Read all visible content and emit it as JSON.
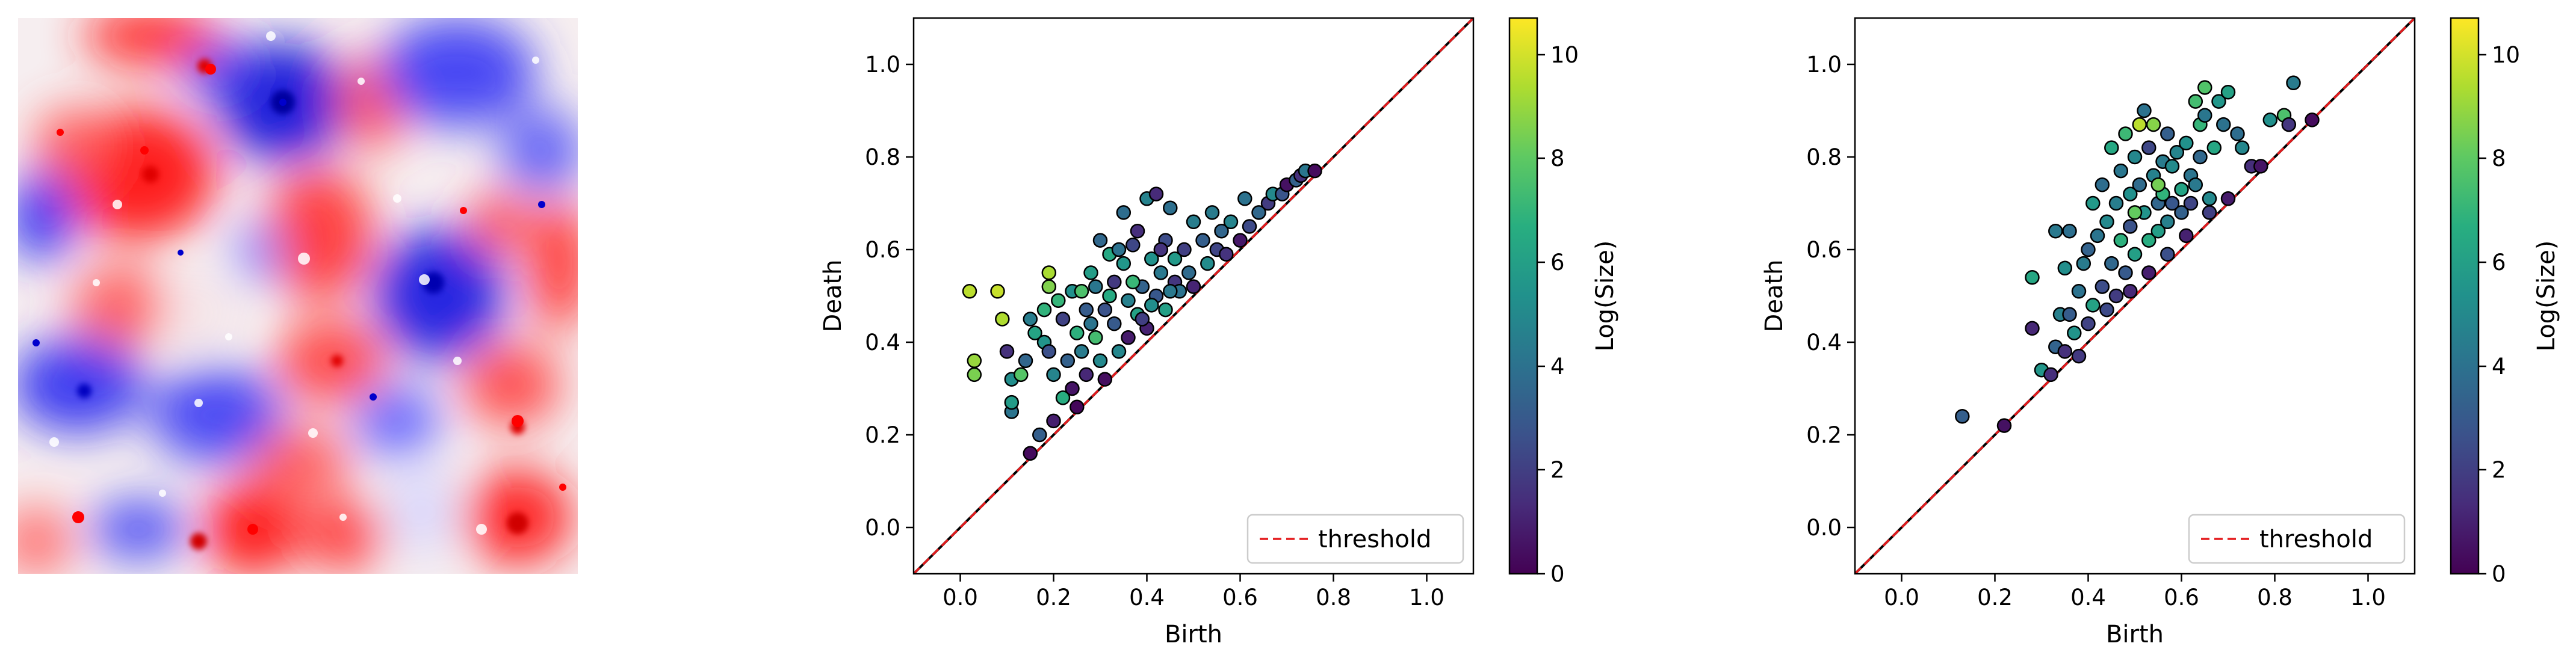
{
  "colors": {
    "threshold": "#e41a1c",
    "diagonal": "#000000",
    "point_edge": "#000000",
    "field_positive": "#ff0000",
    "field_negative": "#0000ff",
    "field_zero": "#ffffff",
    "colormap": [
      "#440154",
      "#472c7a",
      "#3b528b",
      "#2c728e",
      "#21918c",
      "#28ae80",
      "#5ec962",
      "#addc30",
      "#fde725"
    ]
  },
  "image_panel": {
    "content": "scalar field heatmap (red positive, blue negative)",
    "colormap": "bwr"
  },
  "chart_data": [
    {
      "type": "scatter",
      "title": "",
      "xlabel": "Birth",
      "ylabel": "Death",
      "xlim": [
        -0.1,
        1.1
      ],
      "ylim": [
        -0.1,
        1.1
      ],
      "xticks": [
        "0.0",
        "0.2",
        "0.4",
        "0.6",
        "0.8",
        "1.0"
      ],
      "yticks": [
        "0.0",
        "0.2",
        "0.4",
        "0.6",
        "0.8",
        "1.0"
      ],
      "grid": false,
      "legend": {
        "position": "lower-right",
        "entries": [
          "threshold"
        ]
      },
      "threshold": {
        "label": "threshold",
        "style": "dashed",
        "line": "y = x"
      },
      "colorbar": {
        "label": "Log(Size)",
        "min": 0,
        "max": 10.7,
        "ticks": [
          "0",
          "2",
          "4",
          "6",
          "8",
          "10"
        ]
      },
      "points": [
        [
          0.02,
          0.51,
          9.6
        ],
        [
          0.08,
          0.51,
          9.8
        ],
        [
          0.03,
          0.36,
          9.0
        ],
        [
          0.03,
          0.33,
          8.5
        ],
        [
          0.09,
          0.45,
          9.4
        ],
        [
          0.1,
          0.38,
          1.5
        ],
        [
          0.11,
          0.32,
          5.2
        ],
        [
          0.11,
          0.25,
          4.1
        ],
        [
          0.11,
          0.27,
          5.8
        ],
        [
          0.13,
          0.33,
          7.8
        ],
        [
          0.14,
          0.36,
          3.5
        ],
        [
          0.15,
          0.45,
          4.5
        ],
        [
          0.15,
          0.16,
          0.3
        ],
        [
          0.16,
          0.42,
          6.2
        ],
        [
          0.17,
          0.2,
          3.2
        ],
        [
          0.18,
          0.47,
          6.9
        ],
        [
          0.18,
          0.4,
          5.5
        ],
        [
          0.19,
          0.52,
          8.6
        ],
        [
          0.19,
          0.55,
          9.3
        ],
        [
          0.19,
          0.38,
          2.6
        ],
        [
          0.2,
          0.33,
          4.8
        ],
        [
          0.2,
          0.23,
          0.9
        ],
        [
          0.21,
          0.49,
          7.0
        ],
        [
          0.22,
          0.45,
          2.1
        ],
        [
          0.22,
          0.28,
          6.6
        ],
        [
          0.23,
          0.36,
          3.3
        ],
        [
          0.24,
          0.51,
          5.3
        ],
        [
          0.24,
          0.3,
          0.6
        ],
        [
          0.25,
          0.42,
          6.8
        ],
        [
          0.25,
          0.26,
          0.2
        ],
        [
          0.26,
          0.38,
          4.4
        ],
        [
          0.27,
          0.47,
          3.1
        ],
        [
          0.27,
          0.33,
          1.2
        ],
        [
          0.28,
          0.55,
          5.9
        ],
        [
          0.29,
          0.52,
          4.2
        ],
        [
          0.29,
          0.41,
          7.4
        ],
        [
          0.3,
          0.62,
          3.6
        ],
        [
          0.3,
          0.36,
          5.0
        ],
        [
          0.31,
          0.47,
          2.7
        ],
        [
          0.31,
          0.32,
          0.4
        ],
        [
          0.32,
          0.59,
          6.4
        ],
        [
          0.33,
          0.44,
          3.0
        ],
        [
          0.33,
          0.53,
          1.8
        ],
        [
          0.34,
          0.38,
          4.9
        ],
        [
          0.35,
          0.57,
          5.6
        ],
        [
          0.35,
          0.68,
          3.8
        ],
        [
          0.36,
          0.49,
          4.6
        ],
        [
          0.36,
          0.41,
          0.8
        ],
        [
          0.37,
          0.61,
          2.3
        ],
        [
          0.38,
          0.46,
          6.1
        ],
        [
          0.38,
          0.64,
          1.4
        ],
        [
          0.39,
          0.52,
          3.4
        ],
        [
          0.4,
          0.71,
          4.7
        ],
        [
          0.4,
          0.43,
          1.0
        ],
        [
          0.41,
          0.58,
          5.4
        ],
        [
          0.42,
          0.5,
          2.9
        ],
        [
          0.42,
          0.72,
          1.3
        ],
        [
          0.43,
          0.55,
          4.3
        ],
        [
          0.44,
          0.47,
          6.0
        ],
        [
          0.44,
          0.62,
          2.5
        ],
        [
          0.45,
          0.69,
          3.9
        ],
        [
          0.46,
          0.53,
          1.7
        ],
        [
          0.46,
          0.58,
          5.7
        ],
        [
          0.47,
          0.51,
          4.0
        ],
        [
          0.48,
          0.6,
          2.0
        ],
        [
          0.49,
          0.55,
          3.7
        ],
        [
          0.5,
          0.66,
          4.5
        ],
        [
          0.5,
          0.52,
          1.1
        ],
        [
          0.52,
          0.62,
          3.2
        ],
        [
          0.53,
          0.57,
          5.1
        ],
        [
          0.54,
          0.68,
          4.4
        ],
        [
          0.55,
          0.6,
          2.2
        ],
        [
          0.56,
          0.64,
          3.5
        ],
        [
          0.57,
          0.59,
          1.6
        ],
        [
          0.58,
          0.66,
          4.8
        ],
        [
          0.6,
          0.62,
          0.7
        ],
        [
          0.61,
          0.71,
          4.0
        ],
        [
          0.62,
          0.65,
          2.4
        ],
        [
          0.64,
          0.68,
          3.6
        ],
        [
          0.66,
          0.7,
          1.9
        ],
        [
          0.67,
          0.72,
          5.0
        ],
        [
          0.69,
          0.72,
          2.8
        ],
        [
          0.7,
          0.74,
          0.5
        ],
        [
          0.72,
          0.75,
          3.3
        ],
        [
          0.73,
          0.76,
          1.5
        ],
        [
          0.74,
          0.77,
          4.2
        ],
        [
          0.76,
          0.77,
          0.3
        ],
        [
          0.26,
          0.51,
          7.6
        ],
        [
          0.28,
          0.44,
          4.1
        ],
        [
          0.32,
          0.5,
          6.5
        ],
        [
          0.34,
          0.6,
          4.0
        ],
        [
          0.37,
          0.53,
          7.1
        ],
        [
          0.39,
          0.45,
          2.0
        ],
        [
          0.41,
          0.48,
          5.2
        ],
        [
          0.43,
          0.6,
          1.6
        ],
        [
          0.45,
          0.51,
          4.3
        ]
      ]
    },
    {
      "type": "scatter",
      "title": "",
      "xlabel": "Birth",
      "ylabel": "Death",
      "xlim": [
        -0.1,
        1.1
      ],
      "ylim": [
        -0.1,
        1.1
      ],
      "xticks": [
        "0.0",
        "0.2",
        "0.4",
        "0.6",
        "0.8",
        "1.0"
      ],
      "yticks": [
        "0.0",
        "0.2",
        "0.4",
        "0.6",
        "0.8",
        "1.0"
      ],
      "grid": false,
      "legend": {
        "position": "lower-right",
        "entries": [
          "threshold"
        ]
      },
      "threshold": {
        "label": "threshold",
        "style": "dashed",
        "line": "y = x"
      },
      "colorbar": {
        "label": "Log(Size)",
        "min": 0,
        "max": 10.7,
        "ticks": [
          "0",
          "2",
          "4",
          "6",
          "8",
          "10"
        ]
      },
      "points": [
        [
          0.13,
          0.24,
          3.2
        ],
        [
          0.22,
          0.22,
          0.5
        ],
        [
          0.28,
          0.54,
          6.3
        ],
        [
          0.28,
          0.43,
          1.2
        ],
        [
          0.3,
          0.34,
          5.6
        ],
        [
          0.32,
          0.33,
          1.4
        ],
        [
          0.33,
          0.64,
          4.3
        ],
        [
          0.33,
          0.39,
          3.4
        ],
        [
          0.34,
          0.46,
          4.6
        ],
        [
          0.35,
          0.56,
          5.2
        ],
        [
          0.35,
          0.38,
          1.5
        ],
        [
          0.36,
          0.64,
          3.9
        ],
        [
          0.36,
          0.46,
          3.1
        ],
        [
          0.37,
          0.42,
          5.5
        ],
        [
          0.38,
          0.51,
          4.0
        ],
        [
          0.39,
          0.57,
          4.4
        ],
        [
          0.4,
          0.6,
          3.4
        ],
        [
          0.4,
          0.44,
          2.1
        ],
        [
          0.41,
          0.7,
          5.7
        ],
        [
          0.41,
          0.48,
          6.1
        ],
        [
          0.42,
          0.63,
          4.1
        ],
        [
          0.43,
          0.74,
          3.8
        ],
        [
          0.43,
          0.52,
          2.5
        ],
        [
          0.44,
          0.66,
          5.0
        ],
        [
          0.45,
          0.57,
          3.6
        ],
        [
          0.45,
          0.82,
          6.4
        ],
        [
          0.46,
          0.7,
          4.5
        ],
        [
          0.46,
          0.5,
          1.9
        ],
        [
          0.47,
          0.77,
          4.2
        ],
        [
          0.47,
          0.62,
          6.8
        ],
        [
          0.48,
          0.85,
          7.2
        ],
        [
          0.48,
          0.55,
          3.0
        ],
        [
          0.49,
          0.72,
          5.3
        ],
        [
          0.49,
          0.65,
          2.7
        ],
        [
          0.5,
          0.8,
          4.9
        ],
        [
          0.5,
          0.59,
          6.0
        ],
        [
          0.51,
          0.87,
          9.6
        ],
        [
          0.51,
          0.74,
          3.7
        ],
        [
          0.52,
          0.9,
          4.0
        ],
        [
          0.52,
          0.68,
          5.5
        ],
        [
          0.53,
          0.62,
          6.6
        ],
        [
          0.53,
          0.82,
          2.3
        ],
        [
          0.54,
          0.76,
          4.7
        ],
        [
          0.54,
          0.87,
          8.7
        ],
        [
          0.55,
          0.7,
          3.5
        ],
        [
          0.55,
          0.64,
          5.9
        ],
        [
          0.56,
          0.79,
          4.4
        ],
        [
          0.56,
          0.72,
          6.9
        ],
        [
          0.57,
          0.85,
          3.2
        ],
        [
          0.57,
          0.66,
          4.6
        ],
        [
          0.58,
          0.78,
          5.1
        ],
        [
          0.58,
          0.7,
          2.9
        ],
        [
          0.59,
          0.81,
          4.8
        ],
        [
          0.6,
          0.73,
          6.2
        ],
        [
          0.6,
          0.68,
          3.3
        ],
        [
          0.61,
          0.83,
          5.4
        ],
        [
          0.62,
          0.76,
          4.1
        ],
        [
          0.62,
          0.7,
          2.2
        ],
        [
          0.63,
          0.92,
          7.4
        ],
        [
          0.63,
          0.74,
          4.3
        ],
        [
          0.64,
          0.87,
          7.0
        ],
        [
          0.64,
          0.8,
          3.6
        ],
        [
          0.65,
          0.95,
          7.7
        ],
        [
          0.65,
          0.89,
          4.2
        ],
        [
          0.66,
          0.71,
          5.0
        ],
        [
          0.67,
          0.82,
          6.3
        ],
        [
          0.68,
          0.92,
          5.6
        ],
        [
          0.69,
          0.87,
          4.0
        ],
        [
          0.7,
          0.94,
          6.1
        ],
        [
          0.72,
          0.85,
          3.8
        ],
        [
          0.73,
          0.82,
          4.9
        ],
        [
          0.75,
          0.78,
          1.4
        ],
        [
          0.77,
          0.78,
          0.6
        ],
        [
          0.79,
          0.88,
          5.3
        ],
        [
          0.82,
          0.89,
          7.6
        ],
        [
          0.84,
          0.96,
          4.4
        ],
        [
          0.83,
          0.87,
          1.7
        ],
        [
          0.88,
          0.88,
          0.3
        ],
        [
          0.38,
          0.37,
          1.8
        ],
        [
          0.44,
          0.47,
          2.4
        ],
        [
          0.49,
          0.51,
          1.2
        ],
        [
          0.53,
          0.55,
          0.9
        ],
        [
          0.57,
          0.59,
          2.6
        ],
        [
          0.61,
          0.63,
          1.0
        ],
        [
          0.66,
          0.68,
          2.0
        ],
        [
          0.7,
          0.71,
          0.8
        ],
        [
          0.5,
          0.68,
          8.1
        ],
        [
          0.55,
          0.74,
          8.4
        ]
      ]
    }
  ]
}
